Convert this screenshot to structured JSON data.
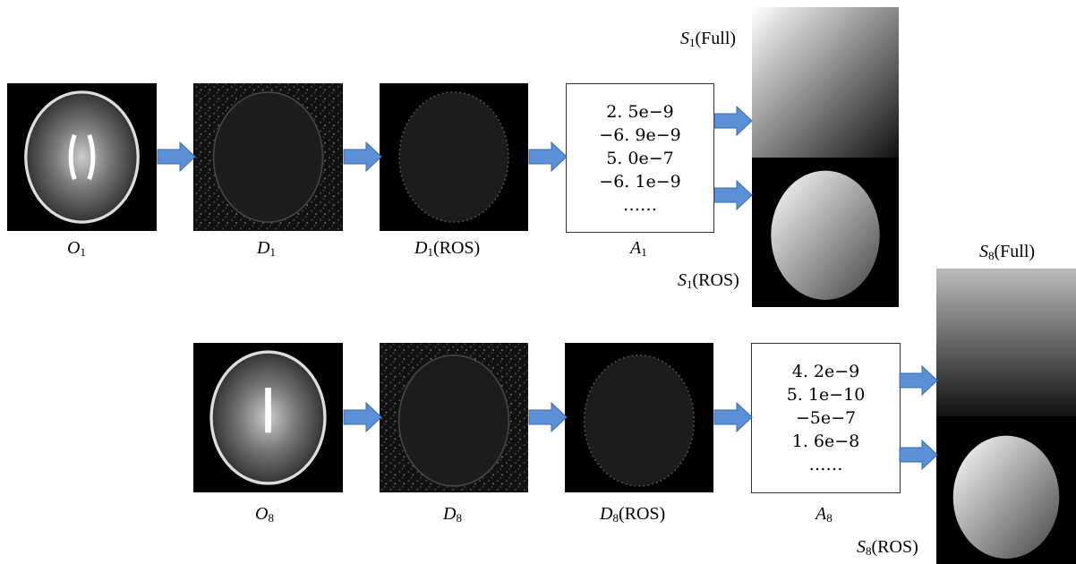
{
  "row1": {
    "labels": [
      {
        "symbol": "O",
        "sub": "1"
      },
      {
        "symbol": "D",
        "sub": "1"
      },
      {
        "symbol": "D",
        "sub": "1",
        "suffix": "(ROS)"
      },
      {
        "symbol": "A",
        "sub": "1"
      },
      {
        "symbol": "S",
        "sub": "1",
        "suffix": "(Full)"
      },
      {
        "symbol": "S",
        "sub": "1",
        "suffix": "(ROS)"
      }
    ],
    "coefficients": [
      "2. 5e−9",
      "−6. 9e−9",
      "5. 0e−7",
      "−6. 1e−9",
      "……"
    ]
  },
  "row2": {
    "labels": [
      {
        "symbol": "O",
        "sub": "8"
      },
      {
        "symbol": "D",
        "sub": "8"
      },
      {
        "symbol": "D",
        "sub": "8",
        "suffix": "(ROS)"
      },
      {
        "symbol": "A",
        "sub": "8"
      },
      {
        "symbol": "S",
        "sub": "8",
        "suffix": "(Full)"
      },
      {
        "symbol": "S",
        "sub": "8",
        "suffix": "(ROS)"
      }
    ],
    "coefficients": [
      "4. 2e−9",
      "5. 1e−10",
      "−5e−7",
      "1. 6e−8",
      "……"
    ]
  }
}
